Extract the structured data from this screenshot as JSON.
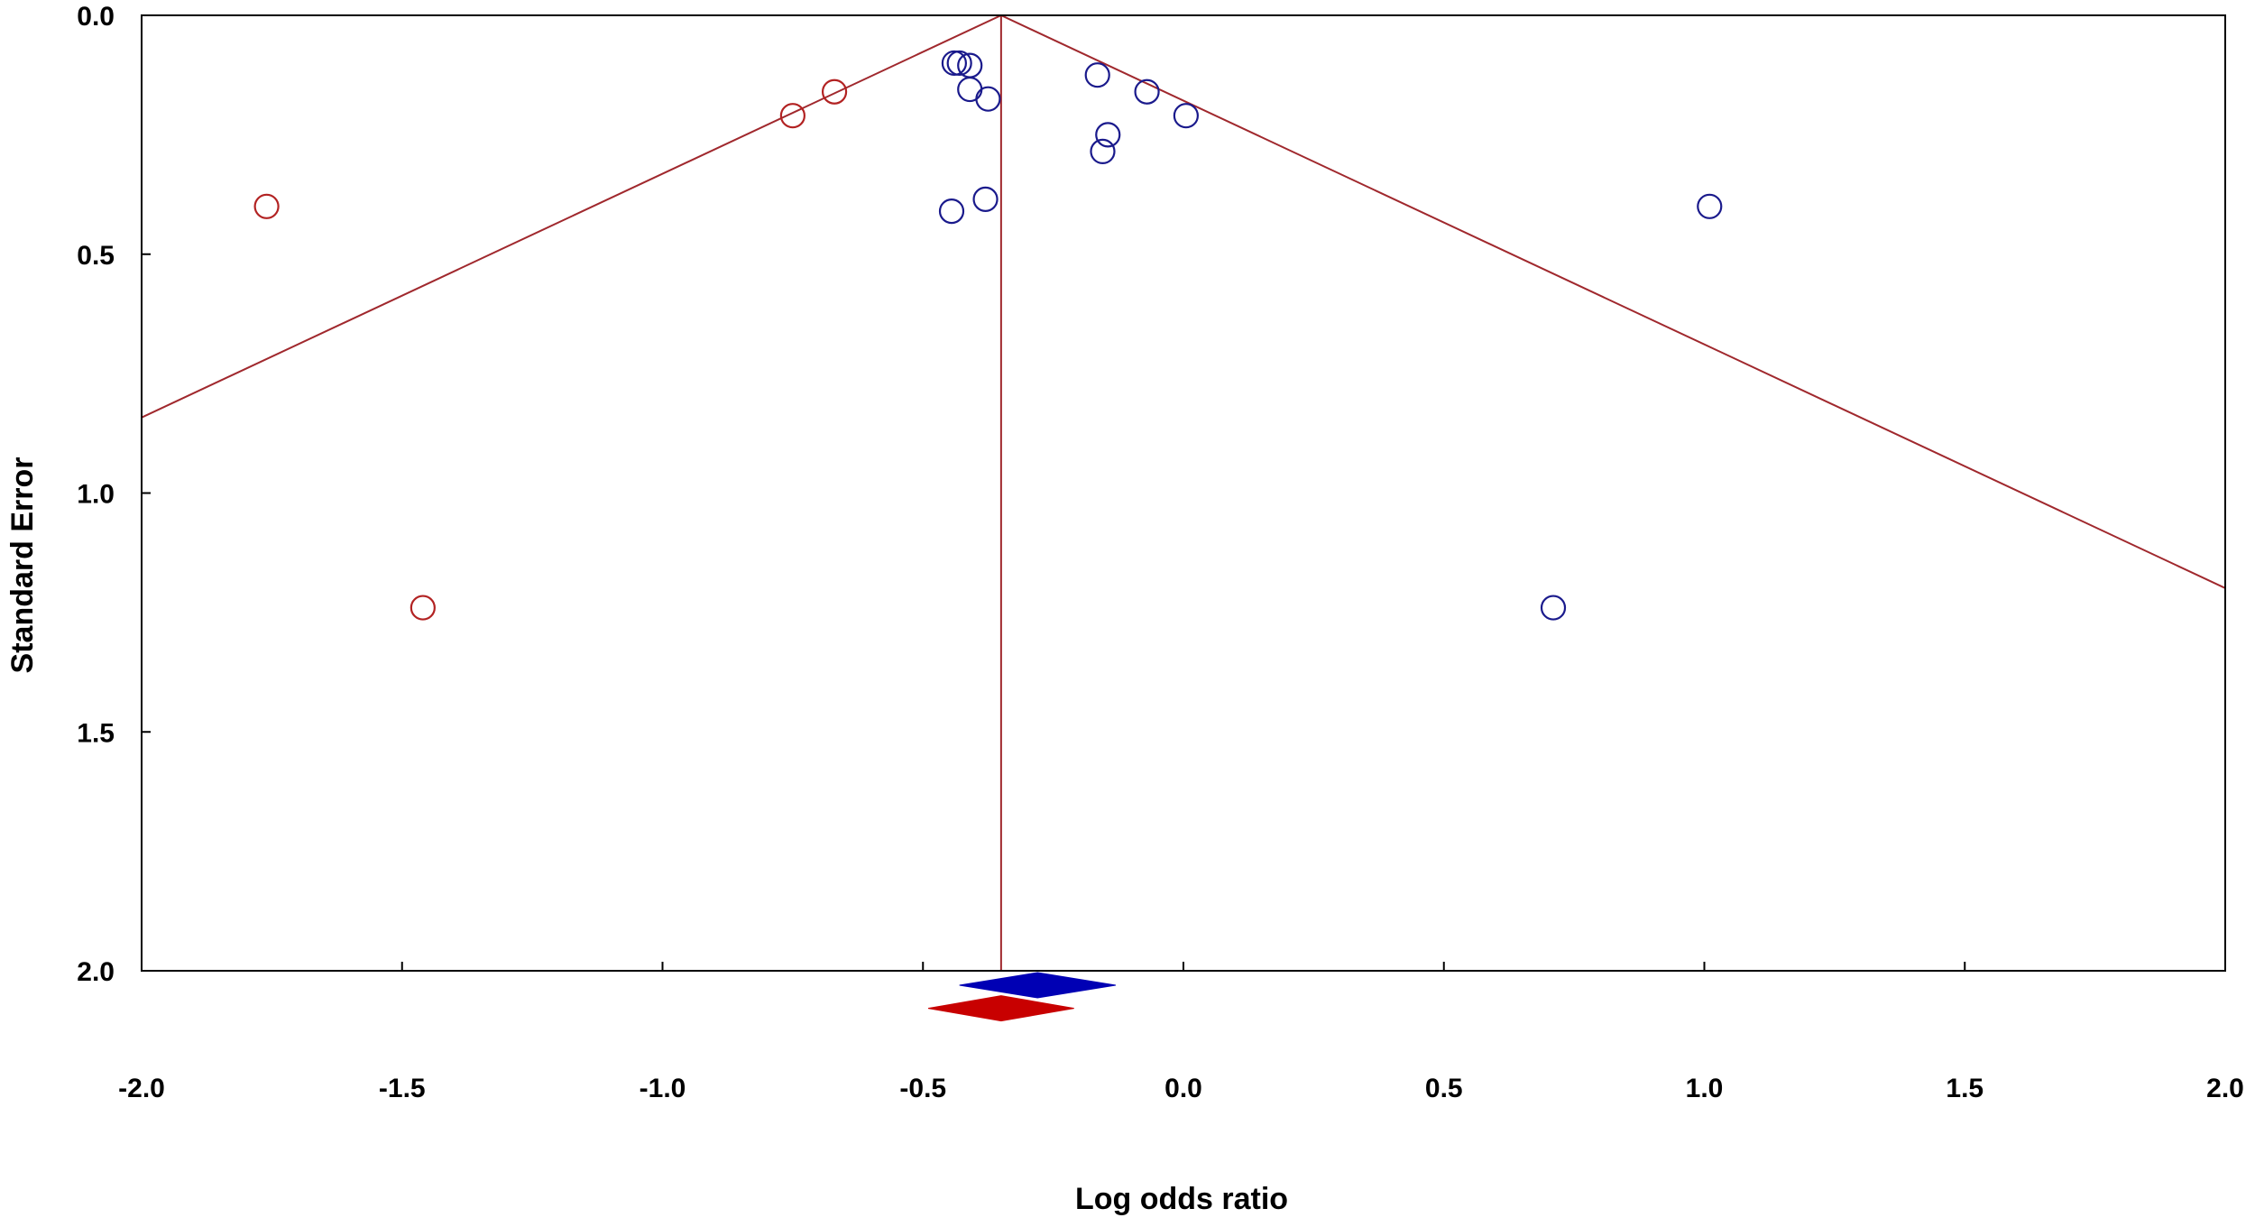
{
  "chart_data": {
    "type": "scatter",
    "title": "",
    "xlabel": "Log odds ratio",
    "ylabel": "Standard Error",
    "xlim": [
      -2.0,
      2.0
    ],
    "ylim": [
      0.0,
      2.0
    ],
    "y_inverted": true,
    "x_ticks": [
      "-2.0",
      "-1.5",
      "-1.0",
      "-0.5",
      "0.0",
      "0.5",
      "1.0",
      "1.5",
      "2.0"
    ],
    "y_ticks": [
      "0.0",
      "0.5",
      "1.0",
      "1.5",
      "2.0"
    ],
    "grid": false,
    "legend": "none",
    "pooled_effect": -0.35,
    "funnel_z": 1.96,
    "colors": {
      "funnel": "#a0282d",
      "observed": "#1a1a8c",
      "imputed": "#b22222",
      "observed_diamond": "#0000b4",
      "adjusted_diamond": "#c80000",
      "axis": "#000000"
    },
    "series": [
      {
        "role": "observed",
        "points": [
          {
            "x": -0.44,
            "y": 0.1
          },
          {
            "x": -0.43,
            "y": 0.1
          },
          {
            "x": -0.41,
            "y": 0.105
          },
          {
            "x": -0.41,
            "y": 0.155
          },
          {
            "x": -0.375,
            "y": 0.175
          },
          {
            "x": -0.445,
            "y": 0.41
          },
          {
            "x": -0.38,
            "y": 0.385
          },
          {
            "x": -0.165,
            "y": 0.125
          },
          {
            "x": -0.07,
            "y": 0.16
          },
          {
            "x": 0.005,
            "y": 0.21
          },
          {
            "x": -0.145,
            "y": 0.25
          },
          {
            "x": -0.155,
            "y": 0.285
          },
          {
            "x": 1.01,
            "y": 0.4
          },
          {
            "x": 0.71,
            "y": 1.24
          }
        ]
      },
      {
        "role": "imputed",
        "points": [
          {
            "x": -1.76,
            "y": 0.4
          },
          {
            "x": -0.75,
            "y": 0.21
          },
          {
            "x": -0.67,
            "y": 0.16
          },
          {
            "x": -1.46,
            "y": 1.24
          }
        ]
      }
    ],
    "diamonds": [
      {
        "role": "observed",
        "center": -0.28,
        "low": -0.43,
        "high": -0.13,
        "y": 2.05
      },
      {
        "role": "adjusted",
        "center": -0.35,
        "low": -0.49,
        "high": -0.21,
        "y": 2.13
      }
    ]
  }
}
